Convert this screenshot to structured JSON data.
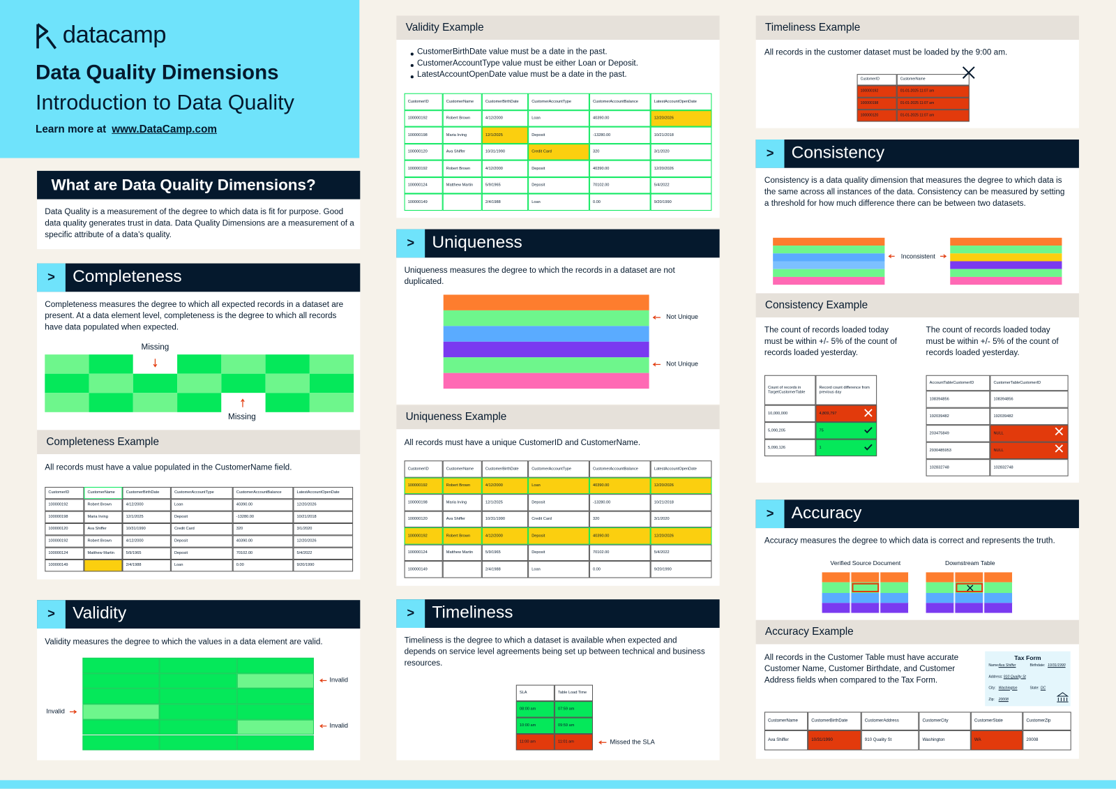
{
  "header": {
    "logo": "datacamp",
    "title": "Data Quality Dimensions",
    "subtitle": "Introduction to Data Quality",
    "learn_more": "Learn more at",
    "link": "www.DataCamp.com"
  },
  "intro": {
    "heading": "What are Data Quality Dimensions?",
    "text": "Data Quality is a measurement of the degree to which data is fit for purpose. Good data quality generates trust in data. Data Quality Dimensions are a measurement of a specific attribute of a data’s quality."
  },
  "customer_table": {
    "columns": [
      "CustomerID",
      "CustomerName",
      "CustomerBirthDate",
      "CustomerAccountType",
      "CustomerAccountBalance",
      "LatestAccountOpenDate"
    ],
    "rows": [
      [
        "100000192",
        "Robert Brown",
        "4/12/2000",
        "Loan",
        "40390.00",
        "12/20/2026"
      ],
      [
        "100000198",
        "Maria Irving",
        "12/1/2025",
        "Deposit",
        "-13280.00",
        "10/21/2018"
      ],
      [
        "100000120",
        "Ava Shiffer",
        "10/31/1990",
        "Credit Card",
        "320",
        "3/1/2020"
      ],
      [
        "100000192",
        "Robert Brown",
        "4/12/2000",
        "Deposit",
        "40390.00",
        "12/20/2026"
      ],
      [
        "100000124",
        "Matthew Martin",
        "5/9/1965",
        "Deposit",
        "70102.00",
        "5/4/2022"
      ],
      [
        "100000149",
        null,
        "2/4/1988",
        "Loan",
        "0.00",
        "9/20/1990"
      ]
    ]
  },
  "completeness": {
    "marker": ">",
    "heading": "Completeness",
    "text": "Completeness measures the degree to which all expected records in a dataset are present. At a data element level, completeness is the degree to which all records have data populated when expected.",
    "labels": [
      "Missing",
      "Missing"
    ],
    "example": {
      "heading": "Completeness Example",
      "text": "All records must have a value populated in the CustomerName field."
    }
  },
  "validity": {
    "marker": ">",
    "heading": "Validity",
    "text": "Validity measures the degree to which the values in a data element are valid.",
    "labels": [
      "Invalid",
      "Invalid",
      "Invalid"
    ],
    "example": {
      "heading": "Validity Example",
      "bullets": [
        "CustomerBirthDate value must be a date in the past.",
        "CustomerAccountType value must be either Loan or Deposit.",
        "LatestAccountOpenDate value must be a date in the past."
      ]
    }
  },
  "uniqueness": {
    "marker": ">",
    "heading": "Uniqueness",
    "text": "Uniqueness measures the degree to which the records in a dataset are not duplicated.",
    "labels": [
      "Not Unique",
      "Not Unique"
    ],
    "example": {
      "heading": "Uniqueness Example",
      "text": "All records must have a unique CustomerID and CustomerName."
    }
  },
  "timeliness": {
    "marker": ">",
    "heading": "Timeliness",
    "text": "Timeliness is the degree to which a dataset is available when expected and depends on service level agreements being set up between technical and business resources.",
    "table": {
      "columns": [
        "SLA",
        "Table Load Time"
      ],
      "rows": [
        [
          "08:00 am",
          "07:59 am"
        ],
        [
          "10:00 am",
          "09:59 am"
        ],
        [
          "11:00 am",
          "11:01 am"
        ]
      ]
    },
    "label": "Missed the SLA",
    "example": {
      "heading": "Timeliness Example",
      "text": "All records in the customer dataset must be loaded by the 9:00 am.",
      "table": {
        "columns": [
          "CustomerID",
          "CustomerName"
        ],
        "rows": [
          [
            "100000192",
            "01-01-2025  11:07 am"
          ],
          [
            "100000198",
            "01-01-2025  11:07 am"
          ],
          [
            "100000120",
            "01-01-2025  11:07 am"
          ]
        ]
      }
    }
  },
  "consistency": {
    "marker": ">",
    "heading": "Consistency",
    "text": "Consistency is a data quality dimension that measures the degree to which data is the same across all instances of the data. Consistency can be measured by setting a threshold for how much difference there can be between two datasets.",
    "label": "Inconsistent",
    "example": {
      "heading": "Consistency Example",
      "texts": [
        "The count of records loaded today must be within +/- 5% of the count of records loaded yesterday.",
        "The count of records loaded today must be within +/- 5% of the count of records loaded yesterday."
      ],
      "table1": {
        "columns": [
          "Count of records in TargetCustomerTable",
          "Record count difference from previous day"
        ],
        "rows": [
          [
            "10,000,000",
            "4,809,797"
          ],
          [
            "5,090,205",
            "75"
          ],
          [
            "5,090,126",
            "1"
          ]
        ]
      },
      "table2": {
        "columns": [
          "AccountTableCustomerID",
          "CustomerTableCustomerID"
        ],
        "rows": [
          [
            "108394856",
            "108394856"
          ],
          [
            "192039482",
            "192039482"
          ],
          [
            "203475849",
            "NULL"
          ],
          [
            "2930485953",
            "NULL"
          ],
          [
            "102832748",
            "102832748"
          ]
        ]
      }
    }
  },
  "accuracy": {
    "marker": ">",
    "heading": "Accuracy",
    "text": "Accuracy measures the degree to which data is correct and represents the truth.",
    "labels": [
      "Verified Source Document",
      "Downstream Table"
    ],
    "example": {
      "heading": "Accuracy Example",
      "text": "All records in the Customer Table must have accurate Customer Name, Customer Birthdate, and Customer Address fields when compared to the Tax Form.",
      "tax_form": {
        "title": "Tax Form",
        "fields": [
          [
            "Name:",
            "Ava Shiffer"
          ],
          [
            "Birthdate:",
            "10/31/1990"
          ],
          [
            "Address:",
            "910 Quality St"
          ],
          [
            "City:",
            "Washington"
          ],
          [
            "State:",
            "DC"
          ],
          [
            "Zip:",
            "20008"
          ]
        ]
      },
      "table": {
        "columns": [
          "CustomerName",
          "CustomerBirthDate",
          "CustomerAddress",
          "CustomerCity",
          "CustomerState",
          "CustomerZip"
        ],
        "rows": [
          [
            "Ava Shiffer",
            "10/31/1990",
            "910 Quality St",
            "Washington",
            "WA",
            "20008"
          ]
        ]
      }
    }
  }
}
